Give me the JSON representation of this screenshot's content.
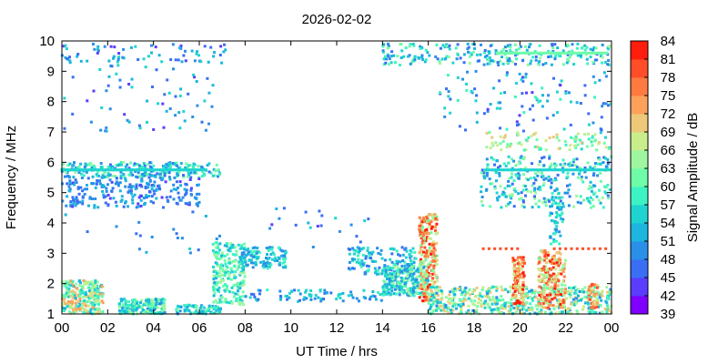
{
  "chart_data": {
    "type": "heatmap",
    "title": "2026-02-02",
    "xlabel": "UT Time / hrs",
    "ylabel": "Frequency / MHz",
    "xlim": [
      0,
      24
    ],
    "ylim": [
      1,
      10
    ],
    "x_ticks": [
      "00",
      "02",
      "04",
      "06",
      "08",
      "10",
      "12",
      "14",
      "16",
      "18",
      "20",
      "22",
      "00"
    ],
    "y_ticks": [
      "1",
      "2",
      "3",
      "4",
      "5",
      "6",
      "7",
      "8",
      "9",
      "10"
    ],
    "colorbar": {
      "label": "Signal Amplitude / dB",
      "min": 39,
      "max": 84,
      "ticks": [
        "39",
        "42",
        "45",
        "48",
        "51",
        "54",
        "57",
        "60",
        "63",
        "66",
        "69",
        "72",
        "75",
        "78",
        "81",
        "84"
      ],
      "colors": [
        "#7f00ff",
        "#5a3dff",
        "#3a6ef5",
        "#2a8fe8",
        "#1cb5dd",
        "#1fd4d0",
        "#3df2c3",
        "#6efca8",
        "#9ef7a0",
        "#c8ed8a",
        "#ecc878",
        "#fca05a",
        "#ff7a40",
        "#ff4e28",
        "#ff1d0e"
      ]
    },
    "regions": [
      {
        "t0": 0.0,
        "t1": 7.2,
        "f0": 9.3,
        "f1": 9.9,
        "n": 70,
        "a0": 44,
        "a1": 56
      },
      {
        "t0": 0.0,
        "t1": 7.0,
        "f0": 7.0,
        "f1": 9.3,
        "n": 70,
        "a0": 44,
        "a1": 56
      },
      {
        "t0": 0.0,
        "t1": 6.9,
        "f0": 5.5,
        "f1": 6.0,
        "n": 240,
        "a0": 46,
        "a1": 64
      },
      {
        "t0": 0.0,
        "t1": 6.0,
        "f0": 4.5,
        "f1": 5.5,
        "n": 240,
        "a0": 44,
        "a1": 54
      },
      {
        "t0": 0.0,
        "t1": 7.0,
        "f0": 3.0,
        "f1": 4.5,
        "n": 20,
        "a0": 46,
        "a1": 56
      },
      {
        "t0": 0.0,
        "t1": 1.8,
        "f0": 1.0,
        "f1": 2.1,
        "n": 260,
        "a0": 52,
        "a1": 75
      },
      {
        "t0": 2.5,
        "t1": 4.5,
        "f0": 1.0,
        "f1": 1.5,
        "n": 200,
        "a0": 50,
        "a1": 66
      },
      {
        "t0": 5.0,
        "t1": 7.0,
        "f0": 1.0,
        "f1": 1.3,
        "n": 80,
        "a0": 48,
        "a1": 62
      },
      {
        "t0": 6.6,
        "t1": 8.0,
        "f0": 1.3,
        "f1": 3.4,
        "n": 220,
        "a0": 52,
        "a1": 66
      },
      {
        "t0": 7.8,
        "t1": 9.8,
        "f0": 2.5,
        "f1": 3.2,
        "n": 120,
        "a0": 48,
        "a1": 60
      },
      {
        "t0": 8.0,
        "t1": 14.0,
        "f0": 1.4,
        "f1": 1.8,
        "n": 80,
        "a0": 46,
        "a1": 58
      },
      {
        "t0": 12.5,
        "t1": 15.5,
        "f0": 2.3,
        "f1": 3.2,
        "n": 140,
        "a0": 46,
        "a1": 60
      },
      {
        "t0": 14.0,
        "t1": 16.0,
        "f0": 1.6,
        "f1": 2.6,
        "n": 260,
        "a0": 48,
        "a1": 66
      },
      {
        "t0": 15.6,
        "t1": 16.4,
        "f0": 1.4,
        "f1": 4.3,
        "n": 240,
        "a0": 60,
        "a1": 84
      },
      {
        "t0": 16.0,
        "t1": 24.0,
        "f0": 1.0,
        "f1": 1.9,
        "n": 520,
        "a0": 50,
        "a1": 72
      },
      {
        "t0": 19.7,
        "t1": 20.2,
        "f0": 1.3,
        "f1": 2.9,
        "n": 120,
        "a0": 66,
        "a1": 84
      },
      {
        "t0": 20.8,
        "t1": 22.0,
        "f0": 1.2,
        "f1": 3.1,
        "n": 220,
        "a0": 62,
        "a1": 84
      },
      {
        "t0": 23.0,
        "t1": 23.4,
        "f0": 1.2,
        "f1": 2.0,
        "n": 40,
        "a0": 66,
        "a1": 80
      },
      {
        "t0": 18.3,
        "t1": 24.0,
        "f0": 4.5,
        "f1": 6.2,
        "n": 300,
        "a0": 46,
        "a1": 66
      },
      {
        "t0": 18.5,
        "t1": 24.0,
        "f0": 6.4,
        "f1": 7.0,
        "n": 90,
        "a0": 56,
        "a1": 72
      },
      {
        "t0": 16.5,
        "t1": 24.0,
        "f0": 7.0,
        "f1": 9.0,
        "n": 110,
        "a0": 44,
        "a1": 60
      },
      {
        "t0": 14.0,
        "t1": 24.0,
        "f0": 9.2,
        "f1": 9.9,
        "n": 260,
        "a0": 46,
        "a1": 64
      },
      {
        "t0": 21.3,
        "t1": 21.9,
        "f0": 3.3,
        "f1": 5.0,
        "n": 50,
        "a0": 48,
        "a1": 60
      },
      {
        "t0": 9.0,
        "t1": 14.0,
        "f0": 2.8,
        "f1": 4.5,
        "n": 25,
        "a0": 44,
        "a1": 56
      }
    ],
    "lines": [
      {
        "t0": 18.4,
        "t1": 20.0,
        "f": 3.15,
        "step": 0.25,
        "a": 78
      },
      {
        "t0": 21.5,
        "t1": 23.8,
        "f": 3.15,
        "step": 0.25,
        "a": 78
      },
      {
        "t0": 0.0,
        "t1": 6.3,
        "f": 5.75,
        "step": 0.06,
        "a": 54
      },
      {
        "t0": 18.5,
        "t1": 24.0,
        "f": 5.75,
        "step": 0.08,
        "a": 56
      },
      {
        "t0": 19.0,
        "t1": 23.9,
        "f": 9.6,
        "step": 0.1,
        "a": 60
      }
    ]
  }
}
